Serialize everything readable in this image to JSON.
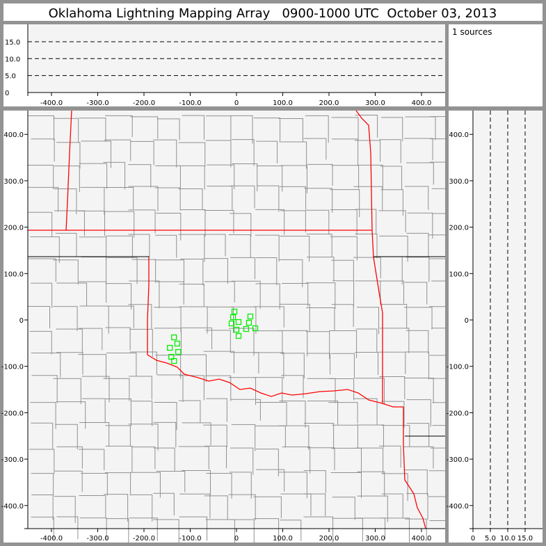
{
  "title": "Oklahoma Lightning Mapping Array   0900-1000 UTC  October 03, 2013",
  "source_count_label": "1 sources",
  "colors": {
    "background": "#939393",
    "plot_bg": "#f4f4f4",
    "county_lines": "#909090",
    "state_borders": "#ff0000",
    "sources": "#00ee00"
  },
  "chart_data": [
    {
      "type": "line",
      "panel": "altitude-vs-east-west",
      "xlim": [
        -450,
        450
      ],
      "ylim": [
        0,
        20
      ],
      "x_ticks": [
        "-400.0",
        "-300.0",
        "-200.0",
        "-100.0",
        "0",
        "100.0",
        "200.0",
        "300.0",
        "400.0"
      ],
      "x_tick_values": [
        -400,
        -300,
        -200,
        -100,
        0,
        100,
        200,
        300,
        400
      ],
      "y_ticks": [
        "0",
        "5.0",
        "10.0",
        "15.0"
      ],
      "y_tick_values": [
        0,
        5,
        10,
        15
      ],
      "dashed_reference_lines": [
        5,
        10,
        15
      ]
    },
    {
      "type": "scatter",
      "panel": "plan-view-map",
      "xlim": [
        -450,
        450
      ],
      "ylim": [
        -450,
        450
      ],
      "x_ticks": [
        "-400.0",
        "-300.0",
        "-200.0",
        "-100.0",
        "0",
        "100.0",
        "200.0",
        "300.0",
        "400.0"
      ],
      "x_tick_values": [
        -400,
        -300,
        -200,
        -100,
        0,
        100,
        200,
        300,
        400
      ],
      "y_ticks": [
        "400.0",
        "300.0",
        "200.0",
        "100.0",
        "0",
        "-100.0",
        "-200.0",
        "-300.0",
        "-400.0"
      ],
      "y_tick_values": [
        400,
        300,
        200,
        100,
        0,
        -100,
        -200,
        -300,
        -400
      ],
      "marker": "open-square",
      "points": [
        [
          -4.5,
          18
        ],
        [
          -7.5,
          6
        ],
        [
          30,
          7.5
        ],
        [
          -10.5,
          -7.5
        ],
        [
          4.5,
          -4.5
        ],
        [
          27,
          -6
        ],
        [
          0,
          -21
        ],
        [
          21,
          -19.5
        ],
        [
          40.6,
          -18
        ],
        [
          4.5,
          -34.5
        ],
        [
          -135,
          -37.5
        ],
        [
          -128,
          -51
        ],
        [
          -144,
          -60
        ],
        [
          -126,
          -69
        ],
        [
          -141,
          -79.5
        ],
        [
          -135,
          -88.5
        ]
      ]
    },
    {
      "type": "line",
      "panel": "north-south-vs-altitude",
      "xlim": [
        0,
        20
      ],
      "ylim": [
        -450,
        450
      ],
      "x_ticks": [
        "0",
        "5.0",
        "10.0",
        "15.0"
      ],
      "x_tick_values": [
        0,
        5,
        10,
        15
      ],
      "dashed_reference_lines": [
        5,
        10,
        15
      ]
    }
  ]
}
